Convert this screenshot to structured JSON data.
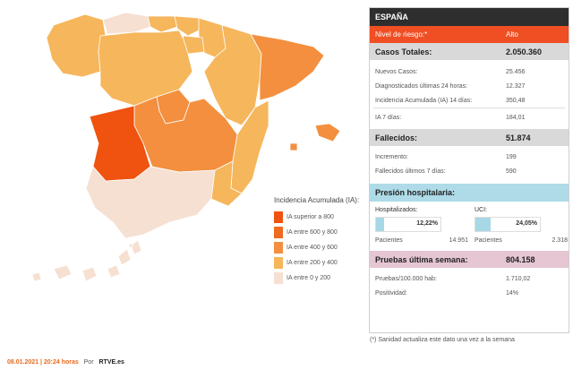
{
  "map": {
    "colors": {
      "gt800": "#f0520f",
      "r600_800": "#ef6b1f",
      "r400_600": "#f38f3e",
      "r200_400": "#f6b65c",
      "r0_200": "#f6e0d2"
    }
  },
  "legend": {
    "title": "Incidencia Acumulada (IA):",
    "items": [
      {
        "label": "IA superior a 800",
        "color": "#f0520f"
      },
      {
        "label": "IA entre 600 y 800",
        "color": "#ef6b1f"
      },
      {
        "label": "IA entre 400 y 600",
        "color": "#f38f3e"
      },
      {
        "label": "IA entre 200 y 400",
        "color": "#f6b65c"
      },
      {
        "label": "IA entre 0 y 200",
        "color": "#f6e0d2"
      }
    ]
  },
  "footer": {
    "datetime": "08.01.2021 | 20:24 horas",
    "by": "Por",
    "source": "RTVE.es"
  },
  "panel": {
    "title": "ESPAÑA",
    "risk": {
      "label": "Nivel de riesgo:*",
      "value": "Alto"
    },
    "cases": {
      "label": "Casos Totales:",
      "value": "2.050.360",
      "rows": [
        {
          "label": "Nuevos Casos:",
          "value": "25.456"
        },
        {
          "label": "Diagnosticados últimas 24 horas:",
          "value": "12.327"
        },
        {
          "label": "Incidencia Acumulada (IA) 14 días:",
          "value": "350,48"
        },
        {
          "label": "IA 7 días:",
          "value": "184,01"
        }
      ]
    },
    "deaths": {
      "label": "Fallecidos:",
      "value": "51.874",
      "rows": [
        {
          "label": "Incremento:",
          "value": "199"
        },
        {
          "label": "Fallecidos últimos 7 días:",
          "value": "590"
        }
      ]
    },
    "hospital": {
      "label": "Presión hospitalaria:",
      "hosp": {
        "label": "Hospitalizados:",
        "pct": "12,22%",
        "fraction": 0.1222,
        "patients_label": "Pacientes",
        "patients": "14.951"
      },
      "uci": {
        "label": "UCI:",
        "pct": "24,05%",
        "fraction": 0.2405,
        "patients_label": "Pacientes",
        "patients": "2.318"
      }
    },
    "tests": {
      "label": "Pruebas última semana:",
      "value": "804.158",
      "rows": [
        {
          "label": "Pruebas/100.000 hab:",
          "value": "1.710,02"
        },
        {
          "label": "Positividad:",
          "value": "14%"
        }
      ]
    }
  },
  "note": "(*) Sanidad actualiza este dato una vez a la semana"
}
